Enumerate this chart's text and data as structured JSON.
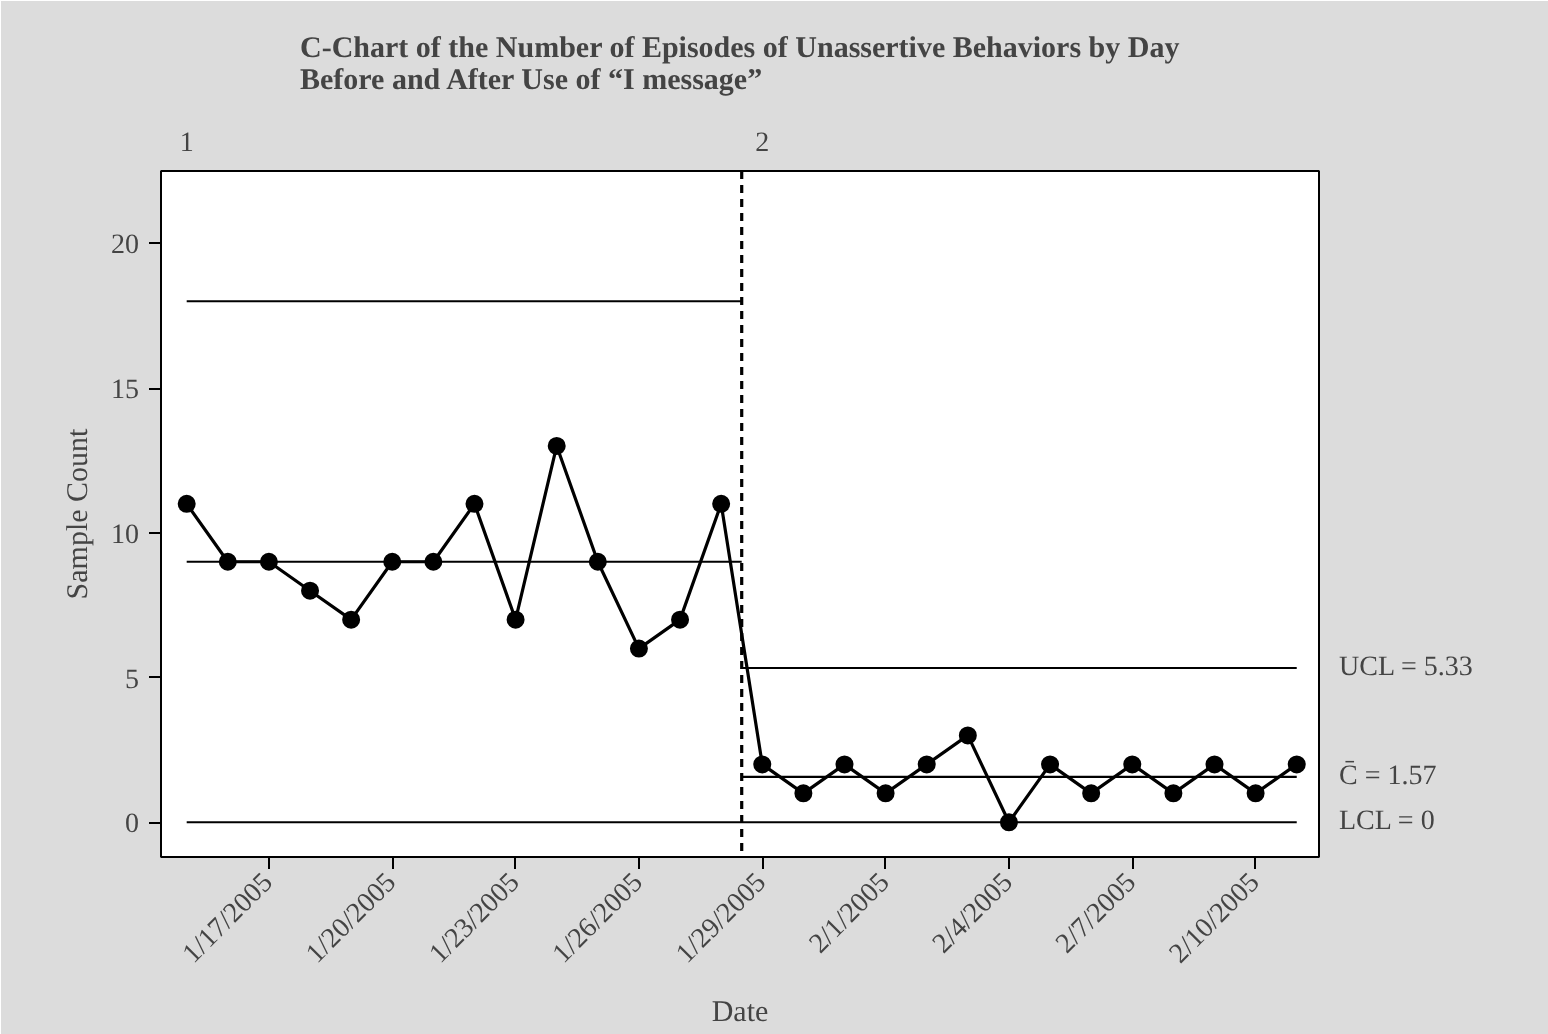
{
  "chart_data": {
    "type": "line",
    "title": "C-Chart of the Number of Episodes of Unassertive Behaviors by Day\nBefore and After Use of “I message”",
    "xlabel": "Date",
    "ylabel": "Sample Count",
    "x": [
      "2005-01-15",
      "2005-01-16",
      "2005-01-17",
      "2005-01-18",
      "2005-01-19",
      "2005-01-20",
      "2005-01-21",
      "2005-01-22",
      "2005-01-23",
      "2005-01-24",
      "2005-01-25",
      "2005-01-26",
      "2005-01-27",
      "2005-01-28",
      "2005-01-29",
      "2005-01-30",
      "2005-01-31",
      "2005-02-01",
      "2005-02-02",
      "2005-02-03",
      "2005-02-04",
      "2005-02-05",
      "2005-02-06",
      "2005-02-07",
      "2005-02-08",
      "2005-02-09",
      "2005-02-10",
      "2005-02-11"
    ],
    "series": [
      {
        "color": "#000000",
        "marker": "circle",
        "values": [
          11,
          9,
          9,
          8,
          7,
          9,
          9,
          11,
          7,
          13,
          9,
          6,
          7,
          11,
          2,
          1,
          2,
          1,
          2,
          3,
          0,
          2,
          1,
          2,
          1,
          2,
          1,
          2
        ]
      },
      {
        "color": "#000000",
        "marker": "none",
        "x": [
          "2005-01-15",
          "2005-01-28T12:00"
        ],
        "values": [
          18,
          18
        ]
      },
      {
        "color": "#000000",
        "marker": "none",
        "x": [
          "2005-01-15",
          "2005-01-28T12:00"
        ],
        "values": [
          9,
          9
        ]
      },
      {
        "name": "LCL = 0",
        "color": "#000000",
        "marker": "none",
        "x": [
          "2005-01-15",
          "2005-02-11"
        ],
        "values": [
          0,
          0
        ]
      },
      {
        "name": "UCL = 5.33",
        "color": "#000000",
        "marker": "none",
        "x": [
          "2005-01-28T12:00",
          "2005-02-11"
        ],
        "values": [
          5.33,
          5.33
        ]
      },
      {
        "name": "C̄ = 1.57",
        "color": "#000000",
        "marker": "none",
        "x": [
          "2005-01-28T12:00",
          "2005-02-11"
        ],
        "values": [
          1.57,
          1.57
        ]
      }
    ],
    "ref_lines": [
      {
        "axis": "x",
        "value": "2005-01-28T12:00",
        "color": "#000000",
        "line_style": "dashed"
      }
    ],
    "annotations": [
      "1",
      "2"
    ],
    "xlim": [
      "2005-01-14T09:00",
      "2005-02-11T13:00"
    ],
    "xticks": [
      {
        "value": "2005-01-17",
        "label": "1/17/2005"
      },
      {
        "value": "2005-01-20",
        "label": "1/20/2005"
      },
      {
        "value": "2005-01-23",
        "label": "1/23/2005"
      },
      {
        "value": "2005-01-26",
        "label": "1/26/2005"
      },
      {
        "value": "2005-01-29",
        "label": "1/29/2005"
      },
      {
        "value": "2005-02-01",
        "label": "2/1/2005"
      },
      {
        "value": "2005-02-04",
        "label": "2/4/2005"
      },
      {
        "value": "2005-02-07",
        "label": "2/7/2005"
      },
      {
        "value": "2005-02-10",
        "label": "2/10/2005"
      }
    ],
    "ylim": [
      -1.2,
      22.5
    ],
    "yticks": [
      0,
      5,
      10,
      15,
      20
    ],
    "grid": false
  }
}
